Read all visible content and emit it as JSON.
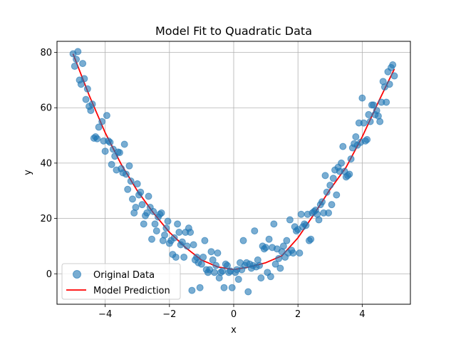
{
  "chart_data": {
    "type": "scatter",
    "title": "Model Fit to Quadratic Data",
    "xlabel": "x",
    "ylabel": "y",
    "xlim": [
      -5.5,
      5.5
    ],
    "ylim": [
      -11,
      84
    ],
    "xticks": [
      -4,
      -2,
      0,
      2,
      4
    ],
    "yticks": [
      0,
      20,
      40,
      60,
      80
    ],
    "grid": true,
    "legend_position": "lower-left",
    "colors": {
      "scatter": "#1f77b4",
      "line": "#ff0000"
    },
    "series": [
      {
        "name": "Original Data",
        "kind": "scatter",
        "points": [
          [
            -5.0,
            79.5
          ],
          [
            -4.95,
            75.0
          ],
          [
            -4.9,
            77.5
          ],
          [
            -4.85,
            80.3
          ],
          [
            -4.8,
            70.0
          ],
          [
            -4.75,
            68.5
          ],
          [
            -4.7,
            76.0
          ],
          [
            -4.65,
            70.5
          ],
          [
            -4.6,
            63.0
          ],
          [
            -4.55,
            66.8
          ],
          [
            -4.5,
            60.5
          ],
          [
            -4.45,
            59.0
          ],
          [
            -4.4,
            61.3
          ],
          [
            -4.35,
            49.0
          ],
          [
            -4.3,
            49.5
          ],
          [
            -4.25,
            48.8
          ],
          [
            -4.2,
            53.0
          ],
          [
            -4.1,
            55.0
          ],
          [
            -4.05,
            48.0
          ],
          [
            -4.0,
            44.3
          ],
          [
            -3.95,
            57.2
          ],
          [
            -3.9,
            48.0
          ],
          [
            -3.85,
            47.5
          ],
          [
            -3.8,
            39.5
          ],
          [
            -3.75,
            45.0
          ],
          [
            -3.7,
            42.5
          ],
          [
            -3.65,
            37.5
          ],
          [
            -3.6,
            44.0
          ],
          [
            -3.55,
            43.8
          ],
          [
            -3.5,
            38.0
          ],
          [
            -3.45,
            36.5
          ],
          [
            -3.4,
            46.8
          ],
          [
            -3.35,
            36.0
          ],
          [
            -3.3,
            30.5
          ],
          [
            -3.25,
            39.0
          ],
          [
            -3.2,
            33.5
          ],
          [
            -3.15,
            27.0
          ],
          [
            -3.1,
            22.0
          ],
          [
            -3.05,
            24.0
          ],
          [
            -3.0,
            32.5
          ],
          [
            -2.95,
            28.5
          ],
          [
            -2.9,
            29.5
          ],
          [
            -2.85,
            25.0
          ],
          [
            -2.8,
            18.0
          ],
          [
            -2.75,
            21.0
          ],
          [
            -2.7,
            22.0
          ],
          [
            -2.65,
            28.0
          ],
          [
            -2.6,
            24.0
          ],
          [
            -2.55,
            12.5
          ],
          [
            -2.5,
            22.5
          ],
          [
            -2.45,
            18.0
          ],
          [
            -2.4,
            15.5
          ],
          [
            -2.35,
            20.5
          ],
          [
            -2.3,
            21.5
          ],
          [
            -2.25,
            22.0
          ],
          [
            -2.2,
            12.0
          ],
          [
            -2.15,
            14.0
          ],
          [
            -2.1,
            16.5
          ],
          [
            -2.05,
            19.0
          ],
          [
            -2.0,
            11.0
          ],
          [
            -1.95,
            12.0
          ],
          [
            -1.9,
            7.0
          ],
          [
            -1.85,
            13.0
          ],
          [
            -1.8,
            6.0
          ],
          [
            -1.75,
            18.0
          ],
          [
            -1.7,
            15.0
          ],
          [
            -1.65,
            10.5
          ],
          [
            -1.6,
            11.5
          ],
          [
            -1.55,
            6.0
          ],
          [
            -1.5,
            15.0
          ],
          [
            -1.45,
            10.0
          ],
          [
            -1.4,
            16.5
          ],
          [
            -1.35,
            15.0
          ],
          [
            -1.3,
            -6.0
          ],
          [
            -1.25,
            10.5
          ],
          [
            -1.2,
            5.0
          ],
          [
            -1.15,
            6.0
          ],
          [
            -1.1,
            4.0
          ],
          [
            -1.05,
            -5.0
          ],
          [
            -1.0,
            3.5
          ],
          [
            -0.95,
            6.0
          ],
          [
            -0.9,
            12.0
          ],
          [
            -0.85,
            1.5
          ],
          [
            -0.8,
            0.5
          ],
          [
            -0.75,
            1.5
          ],
          [
            -0.7,
            8.0
          ],
          [
            -0.65,
            5.0
          ],
          [
            -0.6,
            0.5
          ],
          [
            -0.55,
            3.0
          ],
          [
            -0.5,
            7.5
          ],
          [
            -0.45,
            -1.5
          ],
          [
            -0.4,
            0.5
          ],
          [
            -0.35,
            1.0
          ],
          [
            -0.3,
            -5.0
          ],
          [
            -0.25,
            3.5
          ],
          [
            -0.2,
            3.0
          ],
          [
            -0.15,
            0.5
          ],
          [
            -0.1,
            1.0
          ],
          [
            -0.05,
            -5.0
          ],
          [
            0.05,
            0.5
          ],
          [
            0.1,
            1.5
          ],
          [
            0.15,
            -2.0
          ],
          [
            0.2,
            4.0
          ],
          [
            0.25,
            1.5
          ],
          [
            0.3,
            12.0
          ],
          [
            0.35,
            3.0
          ],
          [
            0.4,
            4.0
          ],
          [
            0.45,
            -6.5
          ],
          [
            0.5,
            3.5
          ],
          [
            0.55,
            2.0
          ],
          [
            0.6,
            3.0
          ],
          [
            0.65,
            15.5
          ],
          [
            0.7,
            2.5
          ],
          [
            0.75,
            5.0
          ],
          [
            0.8,
            3.0
          ],
          [
            0.85,
            -1.5
          ],
          [
            0.9,
            10.0
          ],
          [
            0.95,
            9.0
          ],
          [
            1.0,
            9.5
          ],
          [
            1.05,
            0.5
          ],
          [
            1.1,
            12.5
          ],
          [
            1.15,
            -1.0
          ],
          [
            1.2,
            9.5
          ],
          [
            1.25,
            18.0
          ],
          [
            1.3,
            3.5
          ],
          [
            1.35,
            9.0
          ],
          [
            1.4,
            5.5
          ],
          [
            1.45,
            2.0
          ],
          [
            1.5,
            8.0
          ],
          [
            1.55,
            10.0
          ],
          [
            1.6,
            6.0
          ],
          [
            1.65,
            12.0
          ],
          [
            1.7,
            7.5
          ],
          [
            1.75,
            19.5
          ],
          [
            1.8,
            8.5
          ],
          [
            1.85,
            7.5
          ],
          [
            1.9,
            17.0
          ],
          [
            1.95,
            15.5
          ],
          [
            2.0,
            16.0
          ],
          [
            2.05,
            7.5
          ],
          [
            2.1,
            21.5
          ],
          [
            2.15,
            17.0
          ],
          [
            2.2,
            18.0
          ],
          [
            2.25,
            17.5
          ],
          [
            2.3,
            21.5
          ],
          [
            2.35,
            12.0
          ],
          [
            2.4,
            12.5
          ],
          [
            2.45,
            22.0
          ],
          [
            2.5,
            22.5
          ],
          [
            2.55,
            23.0
          ],
          [
            2.6,
            21.5
          ],
          [
            2.65,
            19.5
          ],
          [
            2.7,
            25.0
          ],
          [
            2.75,
            26.0
          ],
          [
            2.8,
            22.0
          ],
          [
            2.85,
            35.5
          ],
          [
            2.9,
            29.5
          ],
          [
            2.95,
            22.0
          ],
          [
            3.0,
            32.0
          ],
          [
            3.05,
            25.0
          ],
          [
            3.1,
            34.5
          ],
          [
            3.15,
            37.5
          ],
          [
            3.2,
            28.5
          ],
          [
            3.25,
            38.5
          ],
          [
            3.3,
            37.0
          ],
          [
            3.35,
            40.0
          ],
          [
            3.4,
            46.0
          ],
          [
            3.45,
            37.0
          ],
          [
            3.5,
            35.0
          ],
          [
            3.55,
            35.5
          ],
          [
            3.6,
            36.0
          ],
          [
            3.65,
            41.5
          ],
          [
            3.7,
            45.5
          ],
          [
            3.75,
            47.0
          ],
          [
            3.8,
            49.5
          ],
          [
            3.85,
            46.5
          ],
          [
            3.9,
            54.5
          ],
          [
            3.95,
            47.5
          ],
          [
            4.0,
            63.5
          ],
          [
            4.05,
            54.5
          ],
          [
            4.1,
            48.0
          ],
          [
            4.15,
            48.5
          ],
          [
            4.2,
            57.5
          ],
          [
            4.25,
            55.0
          ],
          [
            4.3,
            61.0
          ],
          [
            4.35,
            61.0
          ],
          [
            4.4,
            57.5
          ],
          [
            4.45,
            59.0
          ],
          [
            4.5,
            57.0
          ],
          [
            4.55,
            55.0
          ],
          [
            4.6,
            62.0
          ],
          [
            4.65,
            69.5
          ],
          [
            4.7,
            67.5
          ],
          [
            4.75,
            62.0
          ],
          [
            4.8,
            73.0
          ],
          [
            4.85,
            68.5
          ],
          [
            4.9,
            74.5
          ],
          [
            4.95,
            75.5
          ],
          [
            5.0,
            71.5
          ]
        ]
      },
      {
        "name": "Model Prediction",
        "kind": "line",
        "points": [
          [
            -5.0,
            79.5
          ],
          [
            -4.5,
            64.5
          ],
          [
            -4.0,
            51.0
          ],
          [
            -3.5,
            39.5
          ],
          [
            -3.0,
            30.0
          ],
          [
            -2.5,
            22.0
          ],
          [
            -2.0,
            15.0
          ],
          [
            -1.5,
            9.5
          ],
          [
            -1.0,
            5.0
          ],
          [
            -0.5,
            2.5
          ],
          [
            0.0,
            1.5
          ],
          [
            0.5,
            2.5
          ],
          [
            1.0,
            4.0
          ],
          [
            1.5,
            6.5
          ],
          [
            2.0,
            13.0
          ],
          [
            2.5,
            21.5
          ],
          [
            3.0,
            30.5
          ],
          [
            3.5,
            38.5
          ],
          [
            4.0,
            49.5
          ],
          [
            4.5,
            62.0
          ],
          [
            5.0,
            74.0
          ]
        ]
      }
    ]
  }
}
